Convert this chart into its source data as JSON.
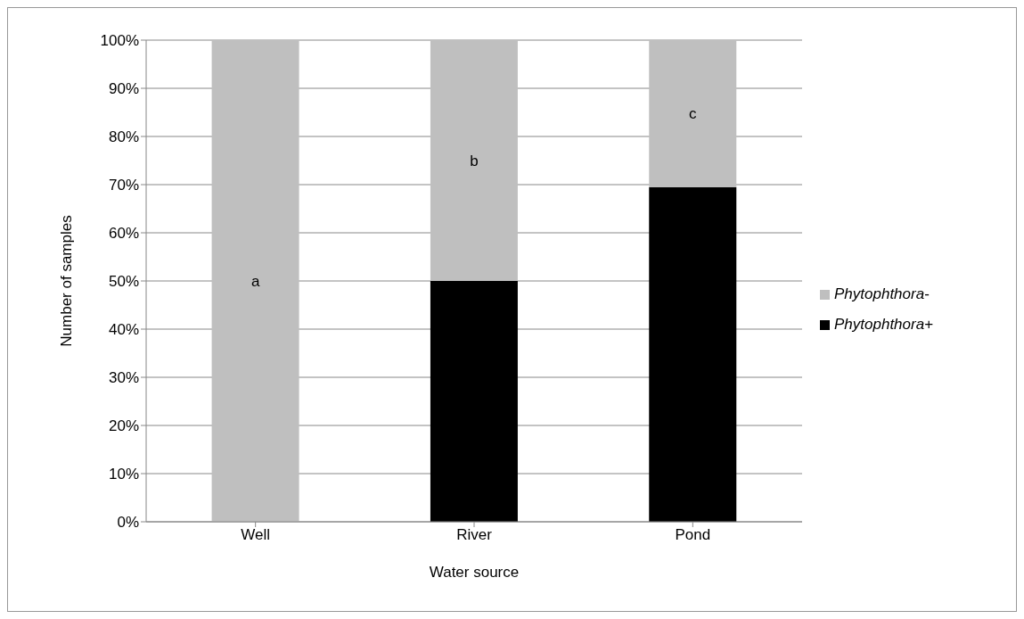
{
  "chart_data": {
    "type": "bar",
    "stacked": true,
    "xlabel": "Water source",
    "ylabel": "Number of samples",
    "categories": [
      "Well",
      "River",
      "Pond"
    ],
    "series": [
      {
        "name": "Phytophthora+",
        "color": "#000000",
        "values": [
          0,
          50,
          69.5
        ]
      },
      {
        "name": "Phytophthora-",
        "color": "#bfbfbf",
        "values": [
          100,
          50,
          30.5
        ]
      }
    ],
    "ylim": [
      0,
      100
    ],
    "yticks": [
      {
        "value": 0,
        "label": "0%"
      },
      {
        "value": 10,
        "label": "10%"
      },
      {
        "value": 20,
        "label": "20%"
      },
      {
        "value": 30,
        "label": "30%"
      },
      {
        "value": 40,
        "label": "40%"
      },
      {
        "value": 50,
        "label": "50%"
      },
      {
        "value": 60,
        "label": "60%"
      },
      {
        "value": 70,
        "label": "70%"
      },
      {
        "value": 80,
        "label": "80%"
      },
      {
        "value": 90,
        "label": "90%"
      },
      {
        "value": 100,
        "label": "100%"
      }
    ],
    "grid": "y",
    "legend": "right",
    "annotations": [
      "a",
      "b",
      "c"
    ]
  }
}
